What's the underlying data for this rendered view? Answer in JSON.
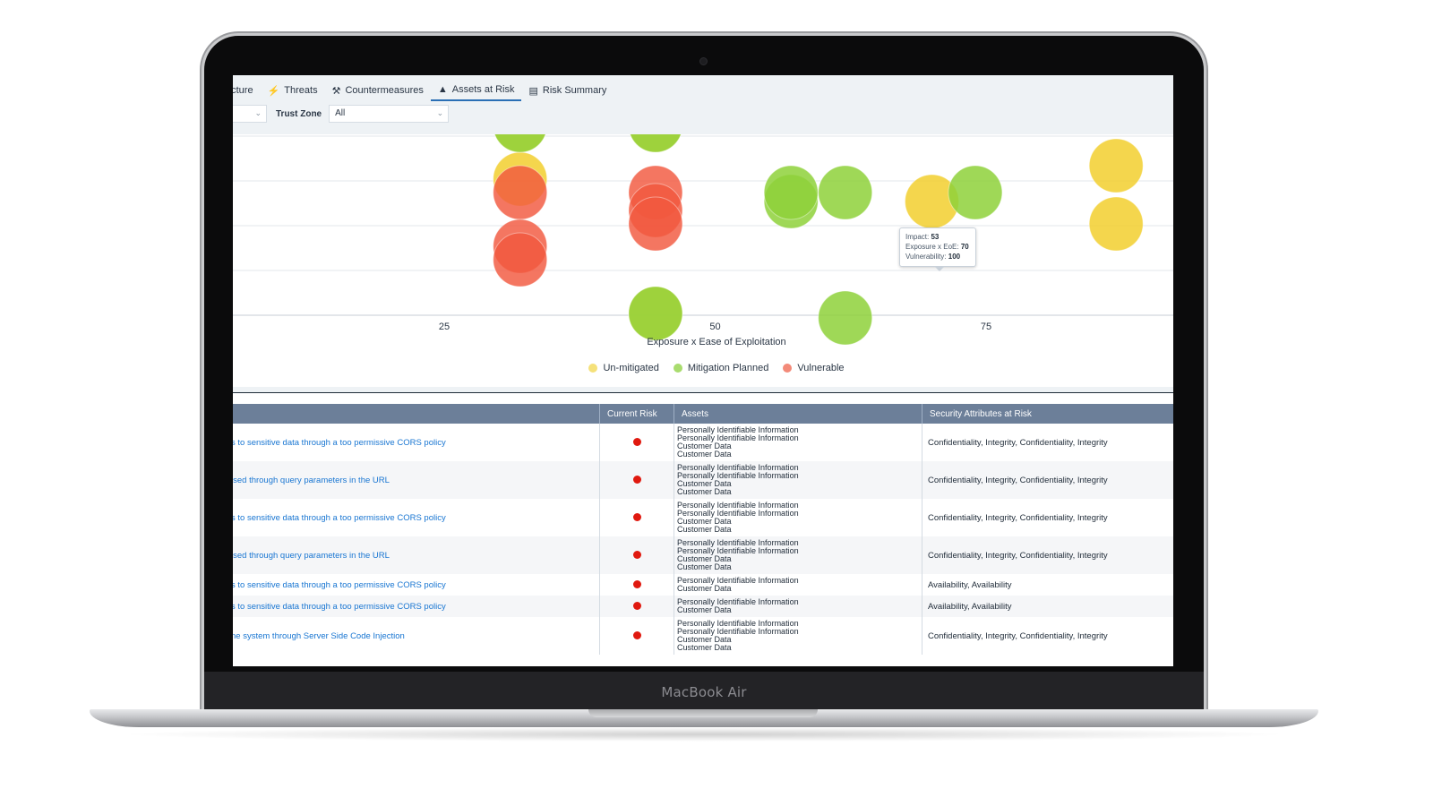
{
  "device": {
    "brand": "MacBook Air"
  },
  "tabs": [
    {
      "label": "ecture",
      "icon": ""
    },
    {
      "label": "Threats",
      "icon": "lightning-icon"
    },
    {
      "label": "Countermeasures",
      "icon": "wrench-icon"
    },
    {
      "label": "Assets at Risk",
      "icon": "warning-triangle-icon",
      "active": true
    },
    {
      "label": "Risk Summary",
      "icon": "list-icon"
    }
  ],
  "filters": {
    "trust_zone_label": "Trust Zone",
    "trust_zone_value": "All"
  },
  "chart_data": {
    "type": "scatter",
    "xlabel": "Exposure x Ease of Exploitation",
    "ylabel": "",
    "x_ticks": [
      25,
      50,
      75
    ],
    "series": [
      {
        "name": "Un-mitigated",
        "color": "#f2cf2e",
        "points": [
          [
            32.0,
            4.0
          ],
          [
            32.0,
            5.2
          ],
          [
            44.5,
            1.0
          ],
          [
            44.5,
            5.2
          ],
          [
            70.0,
            3.5
          ],
          [
            71.0,
            6.0
          ],
          [
            87.0,
            3.0
          ],
          [
            87.0,
            4.3
          ]
        ]
      },
      {
        "name": "Mitigation Planned",
        "color": "#8ed13a",
        "points": [
          [
            32.0,
            5.2
          ],
          [
            44.5,
            5.2
          ],
          [
            44.5,
            1.0
          ],
          [
            57.0,
            3.5
          ],
          [
            57.0,
            3.7
          ],
          [
            62.0,
            3.7
          ],
          [
            62.0,
            0.9
          ],
          [
            70.0,
            6.0
          ],
          [
            74.0,
            6.0
          ],
          [
            74.0,
            3.7
          ]
        ]
      },
      {
        "name": "Vulnerable",
        "color": "#f2583e",
        "points": [
          [
            32.0,
            3.7
          ],
          [
            32.0,
            2.5
          ],
          [
            32.0,
            2.2
          ],
          [
            44.5,
            3.7
          ],
          [
            44.5,
            3.3
          ],
          [
            44.5,
            3.0
          ]
        ]
      }
    ],
    "tooltip": {
      "impact_label": "Impact:",
      "impact": "53",
      "exposure_label": "Exposure x EoE:",
      "exposure": "70",
      "vulnerability_label": "Vulnerability:",
      "vulnerability": "100"
    },
    "legend": [
      {
        "label": "Un-mitigated",
        "color": "#f5e17a"
      },
      {
        "label": "Mitigation Planned",
        "color": "#a9dc6e"
      },
      {
        "label": "Vulnerable",
        "color": "#f38a79"
      }
    ],
    "grid": true
  },
  "table": {
    "headers": [
      "",
      "Current Risk",
      "Assets",
      "Security Attributes at Risk"
    ],
    "rows": [
      {
        "threat": "s to sensitive data through a too permissive CORS policy",
        "assets": [
          "Personally Identifiable Information",
          "Personally Identifiable Information",
          "Customer Data",
          "Customer Data"
        ],
        "attributes": "Confidentiality, Integrity, Confidentiality, Integrity"
      },
      {
        "threat": "ised through query parameters in the URL",
        "assets": [
          "Personally Identifiable Information",
          "Personally Identifiable Information",
          "Customer Data",
          "Customer Data"
        ],
        "attributes": "Confidentiality, Integrity, Confidentiality, Integrity"
      },
      {
        "threat": "s to sensitive data through a too permissive CORS policy",
        "assets": [
          "Personally Identifiable Information",
          "Personally Identifiable Information",
          "Customer Data",
          "Customer Data"
        ],
        "attributes": "Confidentiality, Integrity, Confidentiality, Integrity"
      },
      {
        "threat": "ised through query parameters in the URL",
        "assets": [
          "Personally Identifiable Information",
          "Personally Identifiable Information",
          "Customer Data",
          "Customer Data"
        ],
        "attributes": "Confidentiality, Integrity, Confidentiality, Integrity"
      },
      {
        "threat": "s to sensitive data through a too permissive CORS policy",
        "assets": [
          "Personally Identifiable Information",
          "Customer Data"
        ],
        "attributes": "Availability, Availability"
      },
      {
        "threat": "s to sensitive data through a too permissive CORS policy",
        "assets": [
          "Personally Identifiable Information",
          "Customer Data"
        ],
        "attributes": "Availability, Availability"
      },
      {
        "threat": "ne system through Server Side Code Injection",
        "assets": [
          "Personally Identifiable Information",
          "Personally Identifiable Information",
          "Customer Data",
          "Customer Data"
        ],
        "attributes": "Confidentiality, Integrity, Confidentiality, Integrity"
      }
    ]
  }
}
